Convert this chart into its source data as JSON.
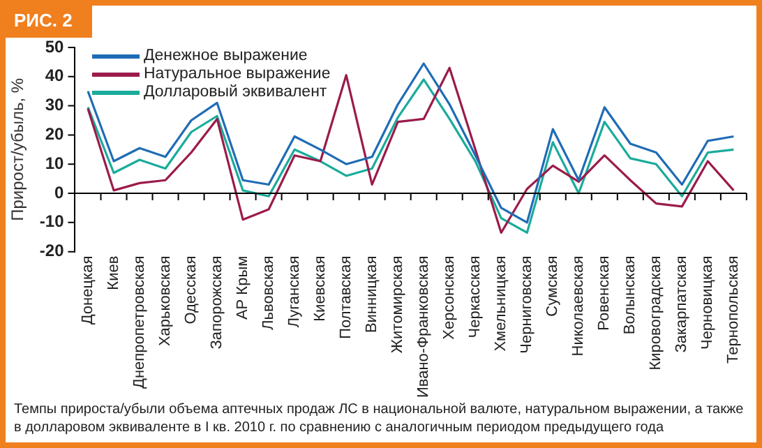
{
  "chart_data": {
    "type": "line",
    "title": "РИС. 2",
    "ylabel": "Прирост/убыль, %",
    "categories": [
      "Донецкая",
      "Киев",
      "Днепропетровская",
      "Харьковская",
      "Одесская",
      "Запорожская",
      "АР Крым",
      "Львовская",
      "Луганская",
      "Киевская",
      "Полтавская",
      "Винницкая",
      "Житомирская",
      "Ивано-Франковская",
      "Херсонская",
      "Черкасская",
      "Хмельницкая",
      "Черниговская",
      "Сумская",
      "Николаевская",
      "Ровенская",
      "Волынская",
      "Кировоградская",
      "Закарпатская",
      "Черновицкая",
      "Тернопольская"
    ],
    "series": [
      {
        "name": "Денежное выражение",
        "color": "#1f6cb5",
        "values": [
          35,
          11,
          15.5,
          12.5,
          25,
          31,
          4.5,
          3,
          19.5,
          15,
          10,
          12.5,
          30.5,
          44.5,
          30.5,
          13,
          -5,
          -10,
          22,
          4.5,
          29.5,
          17,
          14,
          3,
          18,
          19.5
        ]
      },
      {
        "name": "Натуральное выражение",
        "color": "#9b1b4b",
        "values": [
          29,
          1,
          3.5,
          4.5,
          14,
          25.5,
          -9,
          -5.5,
          13,
          11,
          40.5,
          3,
          24.5,
          25.5,
          43,
          15,
          -13.5,
          1.5,
          9.5,
          4,
          13,
          4.5,
          -3.5,
          -4.5,
          11,
          1
        ]
      },
      {
        "name": "Долларовый эквивалент",
        "color": "#1aab9b",
        "values": [
          29.5,
          7,
          11.5,
          8.5,
          21,
          26.5,
          1,
          -1,
          15,
          11,
          6,
          8.5,
          26,
          39,
          25.5,
          11,
          -8.5,
          -13.5,
          17.5,
          0,
          24.5,
          12,
          10,
          -1,
          14,
          15
        ]
      }
    ],
    "ylim": [
      -20,
      50
    ],
    "yticks": [
      -20,
      -10,
      0,
      10,
      20,
      30,
      40,
      50
    ],
    "legend": "top left",
    "marker": "none",
    "line_style": "solid",
    "annotations": [
      "Темпы прироста/убыли объема аптечных продаж ЛС в национальной валюте, натуральном выражении, а также в долларовом эквиваленте в I кв. 2010 г. по сравнению с аналогичным периодом предыдущего года"
    ]
  }
}
